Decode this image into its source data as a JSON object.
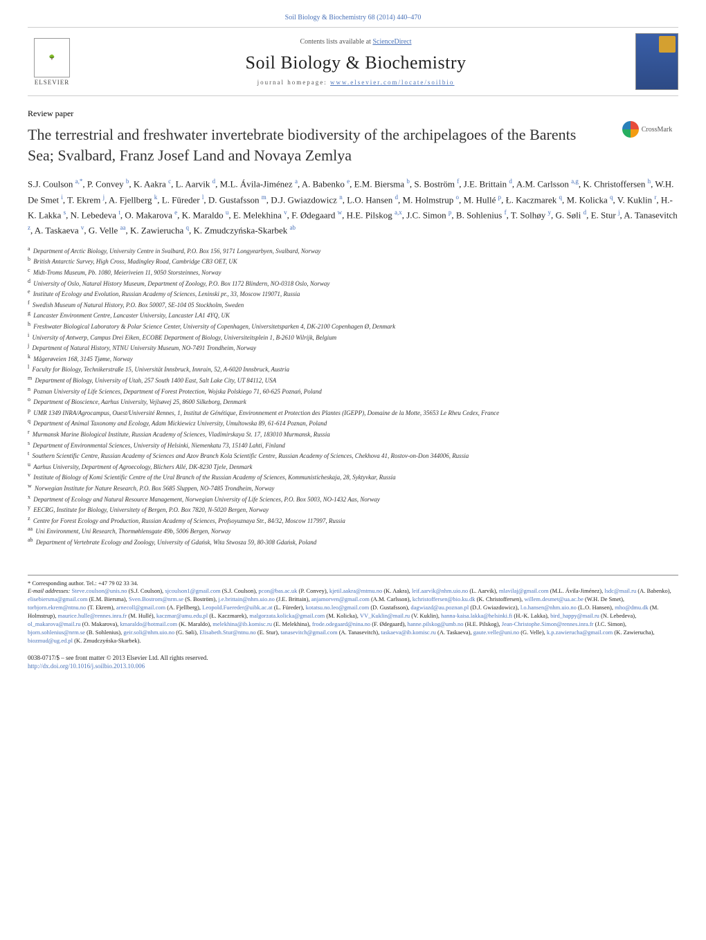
{
  "journal": {
    "header_ref": "Soil Biology & Biochemistry 68 (2014) 440–470",
    "contents_text": "Contents lists available at ",
    "contents_link": "ScienceDirect",
    "title": "Soil Biology & Biochemistry",
    "homepage_prefix": "journal homepage: ",
    "homepage_link": "www.elsevier.com/locate/soilbio",
    "publisher_name": "ELSEVIER"
  },
  "paper": {
    "type": "Review paper",
    "title": "The terrestrial and freshwater invertebrate biodiversity of the archipelagoes of the Barents Sea; Svalbard, Franz Josef Land and Novaya Zemlya",
    "crossmark": "CrossMark"
  },
  "authors_html": "S.J. Coulson <sup>a,*</sup>, P. Convey <sup>b</sup>, K. Aakra <sup>c</sup>, L. Aarvik <sup>d</sup>, M.L. Ávila-Jiménez <sup>a</sup>, A. Babenko <sup>e</sup>, E.M. Biersma <sup>b</sup>, S. Boström <sup>f</sup>, J.E. Brittain <sup>d</sup>, A.M. Carlsson <sup>a,g</sup>, K. Christoffersen <sup>h</sup>, W.H. De Smet <sup>i</sup>, T. Ekrem <sup>j</sup>, A. Fjellberg <sup>k</sup>, L. Füreder <sup>l</sup>, D. Gustafsson <sup>m</sup>, D.J. Gwiazdowicz <sup>n</sup>, L.O. Hansen <sup>d</sup>, M. Holmstrup <sup>o</sup>, M. Hullé <sup>p</sup>, Ł. Kaczmarek <sup>q</sup>, M. Kolicka <sup>q</sup>, V. Kuklin <sup>r</sup>, H.-K. Lakka <sup>s</sup>, N. Lebedeva <sup>t</sup>, O. Makarova <sup>e</sup>, K. Maraldo <sup>u</sup>, E. Melekhina <sup>v</sup>, F. Ødegaard <sup>w</sup>, H.E. Pilskog <sup>a,x</sup>, J.C. Simon <sup>p</sup>, B. Sohlenius <sup>f</sup>, T. Solhøy <sup>y</sup>, G. Søli <sup>d</sup>, E. Stur <sup>j</sup>, A. Tanasevitch <sup>z</sup>, A. Taskaeva <sup>v</sup>, G. Velle <sup>aa</sup>, K. Zawierucha <sup>q</sup>, K. Zmudczyńska-Skarbek <sup>ab</sup>",
  "affiliations": [
    {
      "key": "a",
      "text": "Department of Arctic Biology, University Centre in Svalbard, P.O. Box 156, 9171 Longyearbyen, Svalbard, Norway"
    },
    {
      "key": "b",
      "text": "British Antarctic Survey, High Cross, Madingley Road, Cambridge CB3 OET, UK"
    },
    {
      "key": "c",
      "text": "Midt-Troms Museum, Pb. 1080, Meieriveien 11, 9050 Storsteinnes, Norway"
    },
    {
      "key": "d",
      "text": "University of Oslo, Natural History Museum, Department of Zoology, P.O. Box 1172 Blindern, NO-0318 Oslo, Norway"
    },
    {
      "key": "e",
      "text": "Institute of Ecology and Evolution, Russian Academy of Sciences, Leninski pr., 33, Moscow 119071, Russia"
    },
    {
      "key": "f",
      "text": "Swedish Museum of Natural History, P.O. Box 50007, SE-104 05 Stockholm, Sweden"
    },
    {
      "key": "g",
      "text": "Lancaster Environment Centre, Lancaster University, Lancaster LA1 4YQ, UK"
    },
    {
      "key": "h",
      "text": "Freshwater Biological Laboratory & Polar Science Center, University of Copenhagen, Universitetsparken 4, DK-2100 Copenhagen Ø, Denmark"
    },
    {
      "key": "i",
      "text": "University of Antwerp, Campus Drei Eiken, ECOBE Department of Biology, Universiteitsplein 1, B-2610 Wilrijk, Belgium"
    },
    {
      "key": "j",
      "text": "Department of Natural History, NTNU University Museum, NO-7491 Trondheim, Norway"
    },
    {
      "key": "k",
      "text": "Mågerøveien 168, 3145 Tjøme, Norway"
    },
    {
      "key": "l",
      "text": "Faculty for Biology, Technikerstraße 15, Universität Innsbruck, Innrain, 52, A-6020 Innsbruck, Austria"
    },
    {
      "key": "m",
      "text": "Department of Biology, University of Utah, 257 South 1400 East, Salt Lake City, UT 84112, USA"
    },
    {
      "key": "n",
      "text": "Poznan University of Life Sciences, Department of Forest Protection, Wojska Polskiego 71, 60-625 Poznań, Poland"
    },
    {
      "key": "o",
      "text": "Department of Bioscience, Aarhus University, Vejlsøvej 25, 8600 Silkeborg, Denmark"
    },
    {
      "key": "p",
      "text": "UMR 1349 INRA/Agrocampus, Ouest/Université Rennes, 1, Institut de Génétique, Environnement et Protection des Plantes (IGEPP), Domaine de la Motte, 35653 Le Rheu Cedex, France"
    },
    {
      "key": "q",
      "text": "Department of Animal Taxonomy and Ecology, Adam Mickiewicz University, Umultowska 89, 61-614 Poznan, Poland"
    },
    {
      "key": "r",
      "text": "Murmansk Marine Biological Institute, Russian Academy of Sciences, Vladimirskaya St. 17, 183010 Murmansk, Russia"
    },
    {
      "key": "s",
      "text": "Department of Environmental Sciences, University of Helsinki, Niemenkatu 73, 15140 Lahti, Finland"
    },
    {
      "key": "t",
      "text": "Southern Scientific Centre, Russian Academy of Sciences and Azov Branch Kola Scientific Centre, Russian Academy of Sciences, Chekhova 41, Rostov-on-Don 344006, Russia"
    },
    {
      "key": "u",
      "text": "Aarhus University, Department of Agroecology, Blichers Allé, DK-8230 Tjele, Denmark"
    },
    {
      "key": "v",
      "text": "Institute of Biology of Komi Scientific Centre of the Ural Branch of the Russian Academy of Sciences, Kommunisticheskaja, 28, Syktyvkar, Russia"
    },
    {
      "key": "w",
      "text": "Norwegian Institute for Nature Research, P.O. Box 5685 Sluppen, NO-7485 Trondheim, Norway"
    },
    {
      "key": "x",
      "text": "Department of Ecology and Natural Resource Management, Norwegian University of Life Sciences, P.O. Box 5003, NO-1432 Aas, Norway"
    },
    {
      "key": "y",
      "text": "EECRG, Institute for Biology, Universitety of Bergen, P.O. Box 7820, N-5020 Bergen, Norway"
    },
    {
      "key": "z",
      "text": "Centre for Forest Ecology and Production, Russian Academy of Sciences, Profsoyuznaya Str., 84/32, Moscow 117997, Russia"
    },
    {
      "key": "aa",
      "text": "Uni Environment, Uni Research, Thormøhlensgate 49b, 5006 Bergen, Norway"
    },
    {
      "key": "ab",
      "text": "Department of Vertebrate Ecology and Zoology, University of Gdańsk, Wita Stwosza 59, 80-308 Gdańsk, Poland"
    }
  ],
  "corresponding": "* Corresponding author. Tel.: +47 79 02 33 34.",
  "emails_label": "E-mail addresses: ",
  "emails": [
    {
      "addr": "Steve.coulson@unis.no",
      "who": "(S.J. Coulson)"
    },
    {
      "addr": "sjcoulson1@gmail.com",
      "who": "(S.J. Coulson)"
    },
    {
      "addr": "pcon@bas.ac.uk",
      "who": "(P. Convey)"
    },
    {
      "addr": "kjetil.aakra@mtmu.no",
      "who": "(K. Aakra)"
    },
    {
      "addr": "leif.aarvik@nhm.uio.no",
      "who": "(L. Aarvik)"
    },
    {
      "addr": "mlavilaj@gmail.com",
      "who": "(M.L. Ávila-Jiménez)"
    },
    {
      "addr": "lsdc@mail.ru",
      "who": "(A. Babenko)"
    },
    {
      "addr": "elisebiersma@gmail.com",
      "who": "(E.M. Biersma)"
    },
    {
      "addr": "Sven.Bostrom@nrm.se",
      "who": "(S. Boström)"
    },
    {
      "addr": "j.e.brittain@nhm.uio.no",
      "who": "(J.E. Brittain)"
    },
    {
      "addr": "anjamorven@gmail.com",
      "who": "(A.M. Carlsson)"
    },
    {
      "addr": "kchristoffersen@bio.ku.dk",
      "who": "(K. Christoffersen)"
    },
    {
      "addr": "willem.desmet@ua.ac.be",
      "who": "(W.H. De Smet)"
    },
    {
      "addr": "torbjorn.ekrem@ntnu.no",
      "who": "(T. Ekrem)"
    },
    {
      "addr": "arnecoll@gmail.com",
      "who": "(A. Fjellberg)"
    },
    {
      "addr": "Leopold.Fuereder@uibk.ac.at",
      "who": "(L. Füreder)"
    },
    {
      "addr": "kotatsu.no.leo@gmail.com",
      "who": "(D. Gustafsson)"
    },
    {
      "addr": "dagwiazd@au.poznan.pl",
      "who": "(D.J. Gwiazdowicz)"
    },
    {
      "addr": "l.o.hansen@nhm.uio.no",
      "who": "(L.O. Hansen)"
    },
    {
      "addr": "mho@dmu.dk",
      "who": "(M. Holmstrup)"
    },
    {
      "addr": "maurice.hulle@rennes.inra.fr",
      "who": "(M. Hullé)"
    },
    {
      "addr": "kaczmar@amu.edu.pl",
      "who": "(Ł. Kaczmarek)"
    },
    {
      "addr": "malgorzata.kolicka@gmail.com",
      "who": "(M. Kolicka)"
    },
    {
      "addr": "VV_Kuklin@mail.ru",
      "who": "(V. Kuklin)"
    },
    {
      "addr": "hanna-kaisa.lakka@helsinki.fi",
      "who": "(H.-K. Lakka)"
    },
    {
      "addr": "bird_happy@mail.ru",
      "who": "(N. Lebedeva)"
    },
    {
      "addr": "ol_makarova@mail.ru",
      "who": "(O. Makarova)"
    },
    {
      "addr": "kmaraldo@hotmail.com",
      "who": "(K. Maraldo)"
    },
    {
      "addr": "melekhina@ib.komisc.ru",
      "who": "(E. Melekhina)"
    },
    {
      "addr": "frode.odegaard@nina.no",
      "who": "(F. Ødegaard)"
    },
    {
      "addr": "hanne.pilskog@umb.no",
      "who": "(H.E. Pilskog)"
    },
    {
      "addr": "Jean-Christophe.Simon@rennes.inra.fr",
      "who": "(J.C. Simon)"
    },
    {
      "addr": "bjorn.sohlenius@nrm.se",
      "who": "(B. Sohlenius)"
    },
    {
      "addr": "geir.soli@nhm.uio.no",
      "who": "(G. Søli)"
    },
    {
      "addr": "Elisabeth.Stur@ntnu.no",
      "who": "(E. Stur)"
    },
    {
      "addr": "tanasevitch@gmail.com",
      "who": "(A. Tanasevitch)"
    },
    {
      "addr": "taskaeva@ib.komisc.ru",
      "who": "(A. Taskaeva)"
    },
    {
      "addr": "gaute.velle@uni.no",
      "who": "(G. Velle)"
    },
    {
      "addr": "k.p.zawierucha@gmail.com",
      "who": "(K. Zawierucha)"
    },
    {
      "addr": "biozmud@ug.ed.pl",
      "who": "(K. Zmudczyńska-Skarbek)"
    }
  ],
  "copyright": {
    "line1": "0038-0717/$ – see front matter © 2013 Elsevier Ltd. All rights reserved.",
    "doi": "http://dx.doi.org/10.1016/j.soilbio.2013.10.006"
  },
  "style": {
    "link_color": "#4a72b8",
    "text_color": "#222",
    "title_fontsize": 22,
    "journal_title_fontsize": 26,
    "affil_fontsize": 9,
    "footnote_fontsize": 8.5,
    "background": "#ffffff",
    "cover_bg": "#3a5fa8",
    "cover_accent": "#d4a030"
  }
}
